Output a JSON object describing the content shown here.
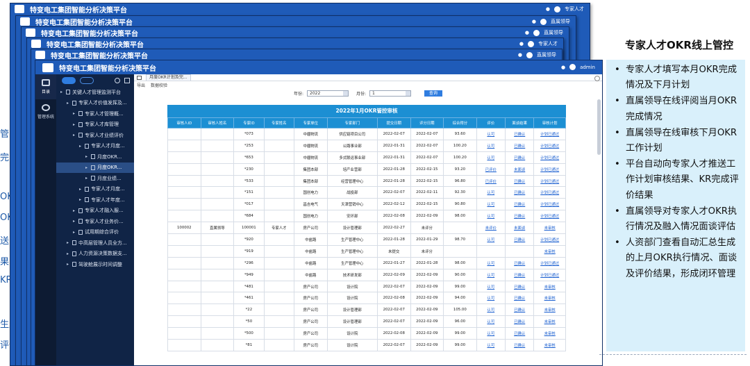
{
  "app_title": "特变电工集团智能分析决策平台",
  "stack_users": [
    "专家人才",
    "直属领导",
    "直属领导",
    "专家人才",
    "直属领导",
    "admin"
  ],
  "left_fragments": [
    "管",
    "完",
    "OK",
    "OK",
    "送",
    "果",
    "KR",
    "生成",
    "评价结"
  ],
  "rail": {
    "items": [
      "目录",
      "管理系统"
    ]
  },
  "tree": {
    "items": [
      {
        "label": "关键人才管理监测平台",
        "level": 0
      },
      {
        "label": "专家人才价值发挥及...",
        "level": 1
      },
      {
        "label": "专家人才管理概...",
        "level": 2
      },
      {
        "label": "专家人才库管理",
        "level": 2
      },
      {
        "label": "专家人才业绩评价",
        "level": 2
      },
      {
        "label": "专家人才月度...",
        "level": 3
      },
      {
        "label": "月度OKR...",
        "level": 4
      },
      {
        "label": "月度OKR...",
        "level": 4,
        "selected": true
      },
      {
        "label": "月度业绩...",
        "level": 4
      },
      {
        "label": "专家人才月度...",
        "level": 3
      },
      {
        "label": "专家人才年度...",
        "level": 3
      },
      {
        "label": "专家人才融入服...",
        "level": 2
      },
      {
        "label": "专家人才业务价...",
        "level": 2
      },
      {
        "label": "试用期综合评价",
        "level": 2
      },
      {
        "label": "中高层管理人员全方...",
        "level": 1
      },
      {
        "label": "人力资源决策数据支...",
        "level": 1
      },
      {
        "label": "驾驶舱展示时间调整",
        "level": 1
      }
    ]
  },
  "tabs": {
    "active": "月度OKR计划及完..."
  },
  "toolstrip": [
    "导出",
    "数据校验"
  ],
  "filter": {
    "year_label": "年份:",
    "year": "2022",
    "month_label": "月份:",
    "month": "1",
    "query": "查询"
  },
  "table": {
    "title": "2022年1月OKR管控审核",
    "headers": [
      "审核人ID",
      "审核人姓名",
      "专家ID",
      "专家姓名",
      "专家单位",
      "专家部门",
      "提交日期",
      "评分日期",
      "综合得分",
      "评价",
      "面谈结果",
      "审核计划"
    ],
    "rows": [
      [
        "",
        "",
        "*073",
        "",
        "中疆物流",
        "供应链项目公司",
        "2022-02-07",
        "2022-02-07",
        "93.60",
        "认可",
        "已确认",
        "计划已通过"
      ],
      [
        "",
        "",
        "*253",
        "",
        "中疆物流",
        "公路事业部",
        "2022-01-31",
        "2022-02-07",
        "100.20",
        "认可",
        "已确认",
        "计划已通过"
      ],
      [
        "",
        "",
        "*653",
        "",
        "中疆物流",
        "多式联运事业部",
        "2022-01-31",
        "2022-02-07",
        "100.20",
        "认可",
        "已确认",
        "计划已通过"
      ],
      [
        "",
        "",
        "*230",
        "",
        "集团本部",
        "培产业营部",
        "2022-01-28",
        "2022-02-15",
        "93.20",
        "已评价",
        "未面谈",
        "计划已通过"
      ],
      [
        "",
        "",
        "*533",
        "",
        "集团本部",
        "经营管理中心",
        "2022-01-28",
        "2022-02-15",
        "96.80",
        "已评价",
        "已确认",
        "计划已通过"
      ],
      [
        "",
        "",
        "*151",
        "",
        "国创电力",
        "战投部",
        "2022-02-07",
        "2022-02-11",
        "92.30",
        "认可",
        "已确认",
        "计划已通过"
      ],
      [
        "",
        "",
        "*017",
        "",
        "昌吉电气",
        "天津营销中心",
        "2022-02-12",
        "2022-02-15",
        "90.80",
        "认可",
        "已确认",
        "计划已通过"
      ],
      [
        "",
        "",
        "*684",
        "",
        "国创电力",
        "安环部",
        "2022-02-08",
        "2022-02-09",
        "98.00",
        "认可",
        "已确认",
        "计划已通过"
      ],
      [
        "100002",
        "直属领导",
        "100001",
        "专家人才",
        "房产公司",
        "设计管理部",
        "2022-02-27",
        "未评分",
        "",
        "未评价",
        "未面谈",
        "未审核"
      ],
      [
        "",
        "",
        "*920",
        "",
        "中盐路",
        "生产管理中心",
        "2022-01-28",
        "2022-01-29",
        "98.70",
        "认可",
        "已确认",
        "计划已通过"
      ],
      [
        "",
        "",
        "*919",
        "",
        "中盐路",
        "生产管理中心",
        "未提交",
        "未评分",
        "",
        "",
        "",
        "未审核"
      ],
      [
        "",
        "",
        "*296",
        "",
        "中盐路",
        "生产管理中心",
        "2022-01-27",
        "2022-01-28",
        "98.00",
        "认可",
        "已确认",
        "计划已通过"
      ],
      [
        "",
        "",
        "*949",
        "",
        "中盐路",
        "技术研发部",
        "2022-02-09",
        "2022-02-09",
        "90.00",
        "认可",
        "已确认",
        "计划已通过"
      ],
      [
        "",
        "",
        "*481",
        "",
        "房产公司",
        "设计院",
        "2022-02-07",
        "2022-02-09",
        "99.00",
        "认可",
        "已确认",
        "未审核"
      ],
      [
        "",
        "",
        "*461",
        "",
        "房产公司",
        "设计院",
        "2022-02-08",
        "2022-02-09",
        "94.00",
        "认可",
        "已确认",
        "未审核"
      ],
      [
        "",
        "",
        "*22",
        "",
        "房产公司",
        "设计管理部",
        "2022-02-07",
        "2022-02-09",
        "105.00",
        "认可",
        "已确认",
        "未审核"
      ],
      [
        "",
        "",
        "*50",
        "",
        "房产公司",
        "设计管理部",
        "2022-02-07",
        "2022-02-09",
        "96.00",
        "认可",
        "已确认",
        "未审核"
      ],
      [
        "",
        "",
        "*500",
        "",
        "房产公司",
        "设计院",
        "2022-02-08",
        "2022-02-09",
        "99.00",
        "认可",
        "已确认",
        "未审核"
      ],
      [
        "",
        "",
        "*81",
        "",
        "房产公司",
        "设计院",
        "2022-02-07",
        "2022-02-09",
        "99.00",
        "认可",
        "已确认",
        "未审核"
      ]
    ]
  },
  "panel": {
    "title": "专家人才OKR线上管控",
    "bullets": [
      "专家人才填写本月OKR完成情况及下月计划",
      "直属领导在线评阅当月OKR完成情况",
      "直属领导在线审核下月OKR工作计划",
      "平台自动向专家人才推送工作计划审核结果、KR完成评价结果",
      "直属领导对专家人才OKR执行情况及融入情况面谈评估",
      "人资部门查看自动汇总生成的上月OKR执行情况、面谈及评价结果，形成闭环管理"
    ]
  }
}
